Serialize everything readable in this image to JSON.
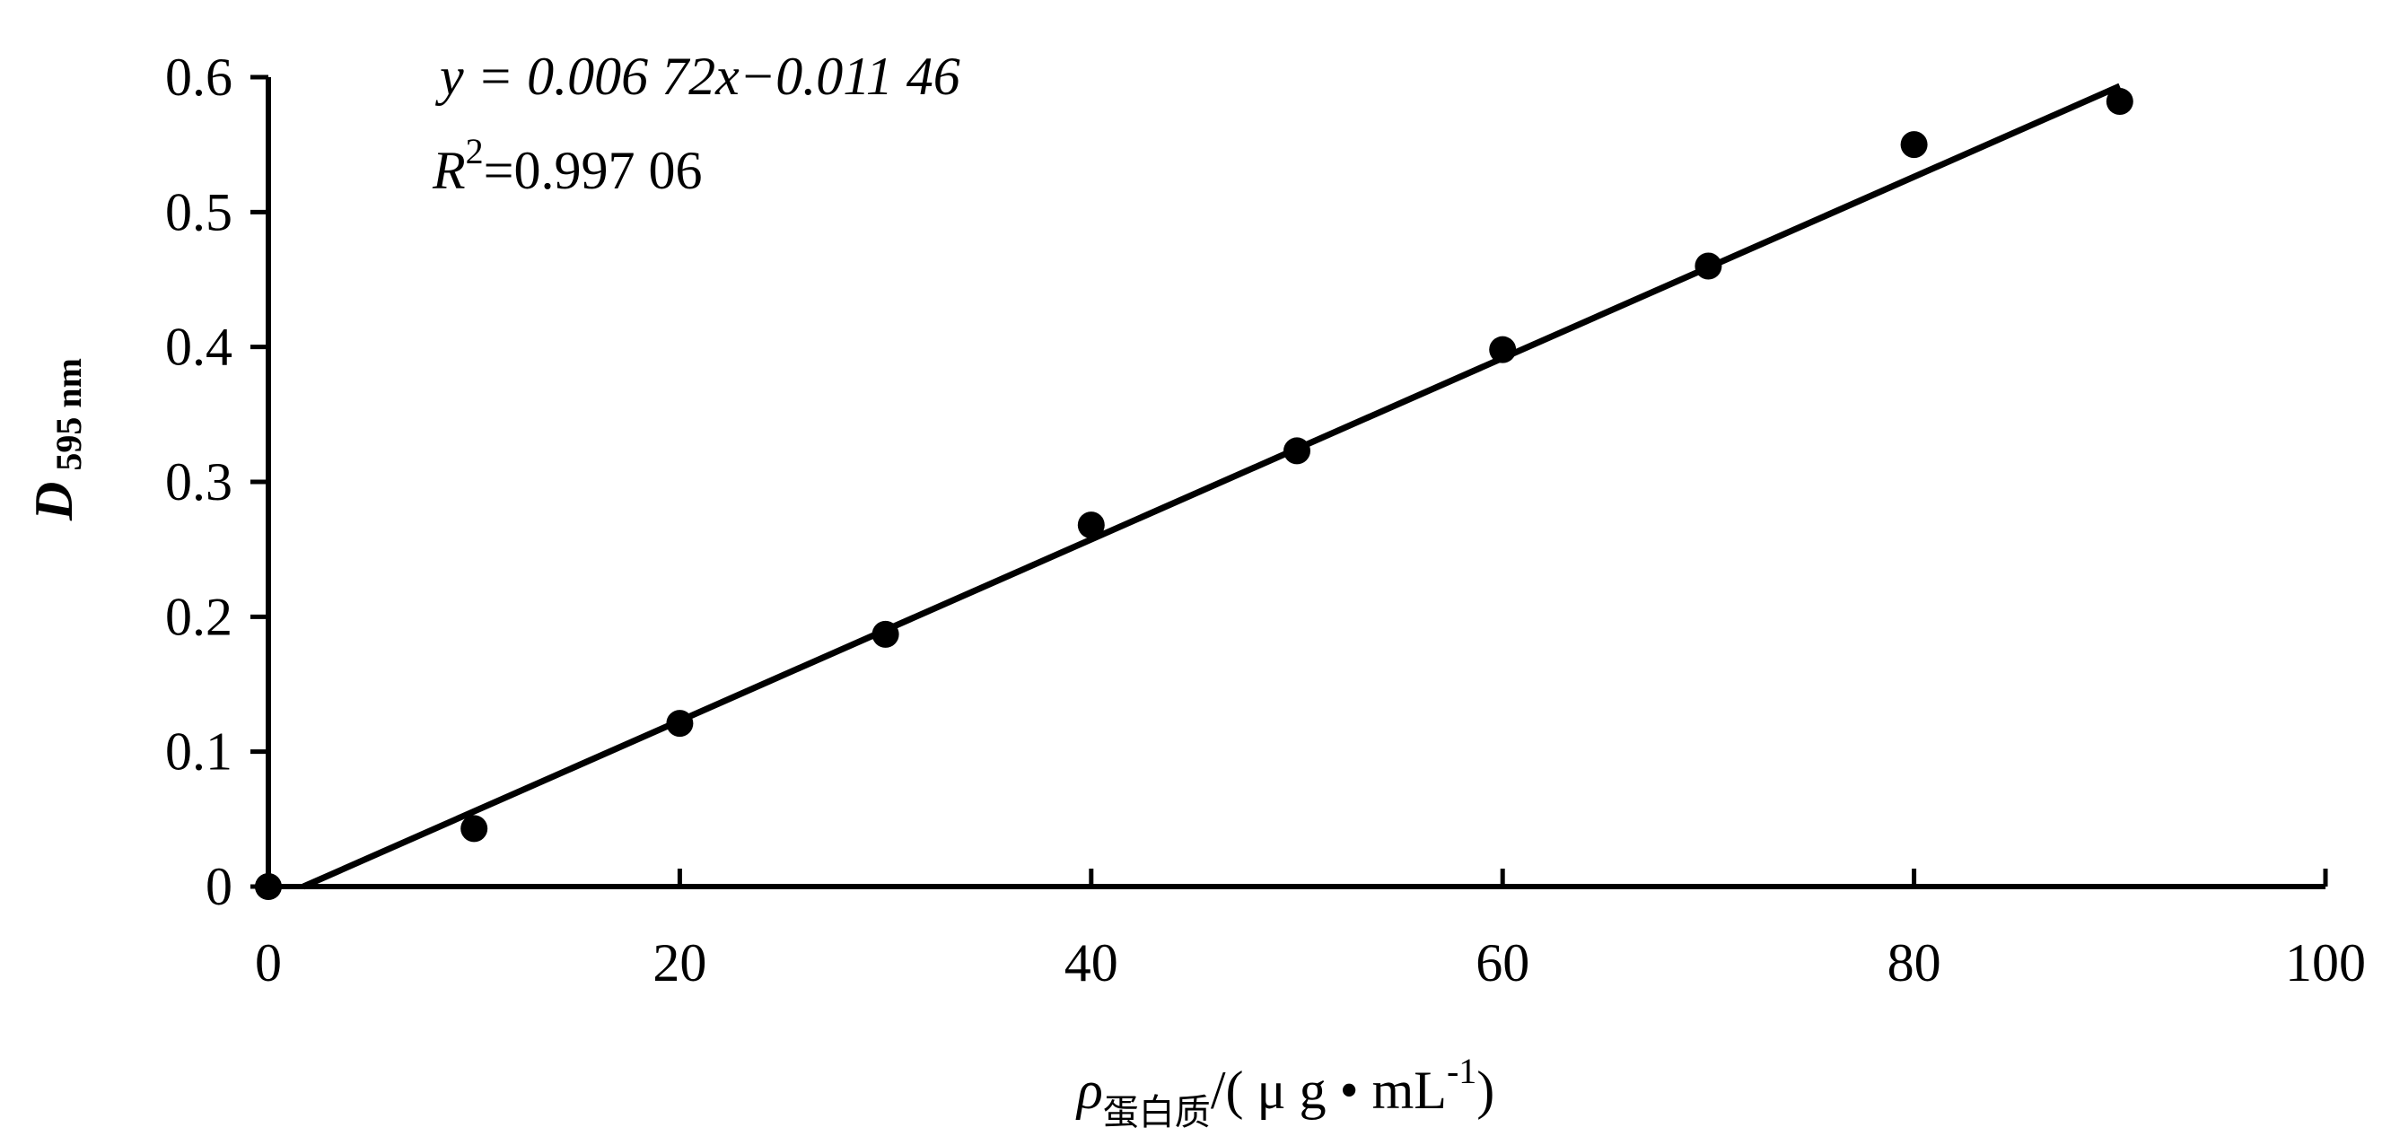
{
  "chart_data": {
    "type": "scatter",
    "x_label": {
      "symbol": "ρ",
      "sub": "蛋白质",
      "unit": "/( μ g • mL",
      "sup": "-1",
      "close": ")"
    },
    "y_label": {
      "main": "D",
      "sub": "595 nm"
    },
    "annotations": {
      "equation": "y = 0.006 72x−0.011 46",
      "r2_main": "R",
      "r2_sup": "2",
      "r2_value": "=0.997 06"
    },
    "x": [
      0,
      10,
      20,
      30,
      40,
      50,
      60,
      70,
      80,
      90
    ],
    "values": [
      0,
      0.043,
      0.121,
      0.187,
      0.268,
      0.323,
      0.398,
      0.46,
      0.55,
      0.582
    ],
    "color": "#000000",
    "trendline": {
      "slope": 0.00672,
      "intercept": -0.01146
    },
    "xlim": [
      0,
      100
    ],
    "xticks": [
      0,
      20,
      40,
      60,
      80,
      100
    ],
    "ylim": [
      0,
      0.6
    ],
    "yticks": [
      0,
      0.1,
      0.2,
      0.3,
      0.4,
      0.5,
      0.6
    ]
  }
}
